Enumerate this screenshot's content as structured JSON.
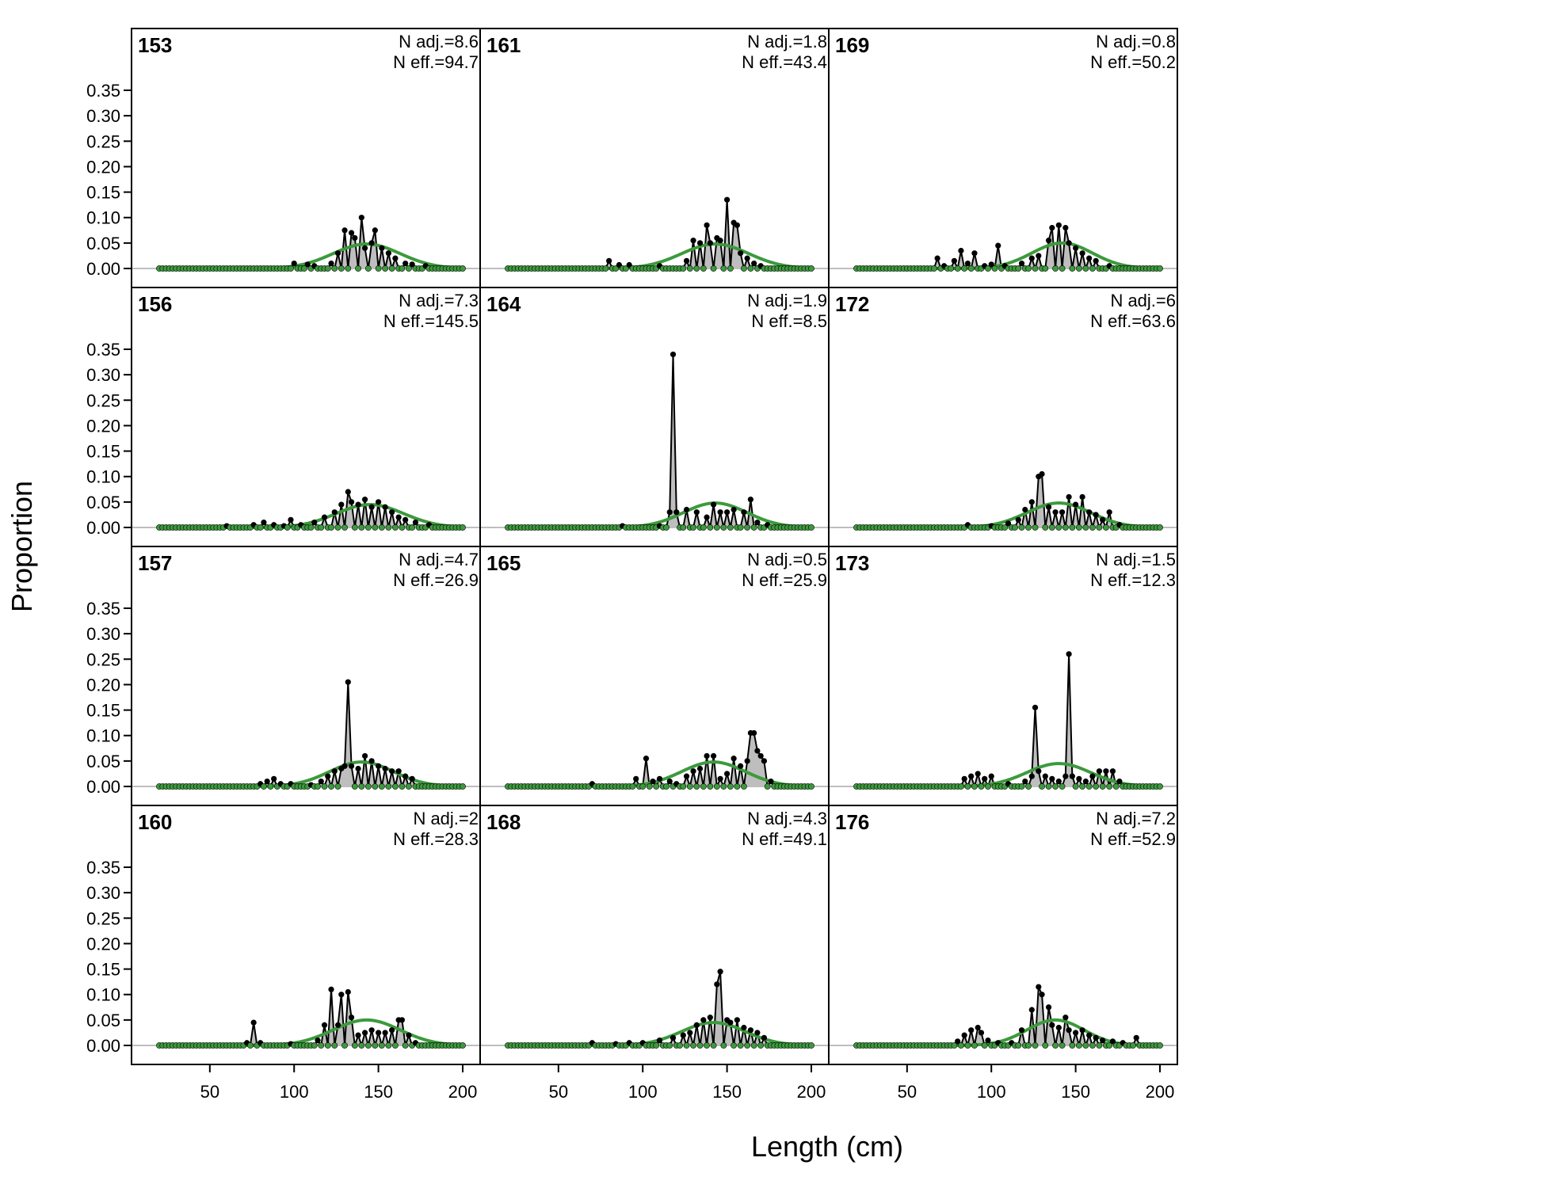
{
  "chart_data": {
    "type": "area",
    "title": "",
    "xlabel": "Length (cm)",
    "ylabel": "Proportion",
    "xlim": [
      20,
      200
    ],
    "ylim": [
      0,
      0.4
    ],
    "x_ticks": [
      "50",
      "100",
      "150",
      "200"
    ],
    "y_ticks": [
      "0.00",
      "0.05",
      "0.10",
      "0.15",
      "0.20",
      "0.25",
      "0.30",
      "0.35"
    ],
    "grid": false,
    "colors": {
      "observed_fill": "#bebebe",
      "observed_line": "#000000",
      "expected_line": "#3c9a3c",
      "zero_line": "#bebebe"
    },
    "series_styles": [
      "observed: grey filled area with black points",
      "expected: green line"
    ],
    "panels": [
      {
        "label": "153",
        "n_adj": "N adj.=8.6",
        "n_eff": "N eff.=94.7",
        "peaks": [
          [
            100,
            0.01
          ],
          [
            108,
            0.008
          ],
          [
            112,
            0.005
          ],
          [
            122,
            0.01
          ],
          [
            126,
            0.03
          ],
          [
            130,
            0.075
          ],
          [
            133,
            0.07
          ],
          [
            136,
            0.06
          ],
          [
            139,
            0.1
          ],
          [
            142,
            0.04
          ],
          [
            145,
            0.05
          ],
          [
            148,
            0.075
          ],
          [
            151,
            0.04
          ],
          [
            155,
            0.03
          ],
          [
            160,
            0.02
          ],
          [
            165,
            0.01
          ],
          [
            170,
            0.008
          ],
          [
            178,
            0.005
          ]
        ],
        "expected": {
          "mu": 143,
          "sigma": 20,
          "peak": 0.048
        }
      },
      {
        "label": "161",
        "n_adj": "N adj.=1.8",
        "n_eff": "N eff.=43.4",
        "peaks": [
          [
            80,
            0.015
          ],
          [
            86,
            0.007
          ],
          [
            92,
            0.007
          ],
          [
            110,
            0.005
          ],
          [
            125,
            0.015
          ],
          [
            130,
            0.055
          ],
          [
            134,
            0.05
          ],
          [
            137,
            0.085
          ],
          [
            140,
            0.05
          ],
          [
            143,
            0.06
          ],
          [
            146,
            0.055
          ],
          [
            150,
            0.135
          ],
          [
            153,
            0.09
          ],
          [
            155,
            0.085
          ],
          [
            158,
            0.03
          ],
          [
            162,
            0.02
          ],
          [
            166,
            0.01
          ],
          [
            170,
            0.005
          ]
        ],
        "expected": {
          "mu": 143,
          "sigma": 20,
          "peak": 0.048
        }
      },
      {
        "label": "169",
        "n_adj": "N adj.=0.8",
        "n_eff": "N eff.=50.2",
        "peaks": [
          [
            67,
            0.02
          ],
          [
            72,
            0.005
          ],
          [
            78,
            0.015
          ],
          [
            82,
            0.035
          ],
          [
            86,
            0.01
          ],
          [
            90,
            0.03
          ],
          [
            95,
            0.005
          ],
          [
            100,
            0.008
          ],
          [
            104,
            0.045
          ],
          [
            108,
            0.005
          ],
          [
            118,
            0.01
          ],
          [
            124,
            0.02
          ],
          [
            128,
            0.025
          ],
          [
            133,
            0.055
          ],
          [
            136,
            0.08
          ],
          [
            139,
            0.085
          ],
          [
            143,
            0.08
          ],
          [
            146,
            0.05
          ],
          [
            150,
            0.04
          ],
          [
            154,
            0.03
          ],
          [
            158,
            0.02
          ],
          [
            162,
            0.015
          ],
          [
            170,
            0.005
          ]
        ],
        "expected": {
          "mu": 142,
          "sigma": 18,
          "peak": 0.05
        }
      },
      {
        "label": "156",
        "n_adj": "N adj.=7.3",
        "n_eff": "N eff.=145.5",
        "peaks": [
          [
            60,
            0.003
          ],
          [
            76,
            0.005
          ],
          [
            82,
            0.01
          ],
          [
            88,
            0.005
          ],
          [
            94,
            0.003
          ],
          [
            98,
            0.015
          ],
          [
            104,
            0.005
          ],
          [
            112,
            0.01
          ],
          [
            118,
            0.02
          ],
          [
            124,
            0.03
          ],
          [
            128,
            0.045
          ],
          [
            131,
            0.07
          ],
          [
            134,
            0.05
          ],
          [
            138,
            0.045
          ],
          [
            142,
            0.055
          ],
          [
            146,
            0.04
          ],
          [
            150,
            0.05
          ],
          [
            154,
            0.04
          ],
          [
            158,
            0.03
          ],
          [
            162,
            0.02
          ],
          [
            166,
            0.015
          ],
          [
            172,
            0.01
          ],
          [
            180,
            0.005
          ]
        ],
        "expected": {
          "mu": 145,
          "sigma": 20,
          "peak": 0.045
        }
      },
      {
        "label": "164",
        "n_adj": "N adj.=1.9",
        "n_eff": "N eff.=8.5",
        "peaks": [
          [
            88,
            0.003
          ],
          [
            110,
            0.003
          ],
          [
            116,
            0.03
          ],
          [
            118,
            0.34
          ],
          [
            120,
            0.03
          ],
          [
            126,
            0.035
          ],
          [
            132,
            0.03
          ],
          [
            138,
            0.02
          ],
          [
            142,
            0.045
          ],
          [
            146,
            0.03
          ],
          [
            150,
            0.03
          ],
          [
            154,
            0.035
          ],
          [
            160,
            0.03
          ],
          [
            164,
            0.055
          ],
          [
            168,
            0.01
          ],
          [
            174,
            0.005
          ]
        ],
        "expected": {
          "mu": 143,
          "sigma": 19,
          "peak": 0.048
        }
      },
      {
        "label": "172",
        "n_adj": "N adj.=6",
        "n_eff": "N eff.=63.6",
        "peaks": [
          [
            85,
            0.005
          ],
          [
            100,
            0.003
          ],
          [
            110,
            0.008
          ],
          [
            116,
            0.015
          ],
          [
            120,
            0.035
          ],
          [
            124,
            0.05
          ],
          [
            127,
            0.1
          ],
          [
            130,
            0.105
          ],
          [
            134,
            0.04
          ],
          [
            138,
            0.03
          ],
          [
            142,
            0.03
          ],
          [
            146,
            0.06
          ],
          [
            150,
            0.045
          ],
          [
            154,
            0.06
          ],
          [
            158,
            0.03
          ],
          [
            162,
            0.025
          ],
          [
            166,
            0.015
          ],
          [
            170,
            0.03
          ],
          [
            176,
            0.005
          ]
        ],
        "expected": {
          "mu": 140,
          "sigma": 19,
          "peak": 0.048
        }
      },
      {
        "label": "157",
        "n_adj": "N adj.=4.7",
        "n_eff": "N eff.=26.9",
        "peaks": [
          [
            80,
            0.005
          ],
          [
            84,
            0.01
          ],
          [
            88,
            0.015
          ],
          [
            92,
            0.005
          ],
          [
            98,
            0.005
          ],
          [
            110,
            0.003
          ],
          [
            116,
            0.01
          ],
          [
            120,
            0.02
          ],
          [
            124,
            0.03
          ],
          [
            128,
            0.035
          ],
          [
            130,
            0.04
          ],
          [
            132,
            0.205
          ],
          [
            134,
            0.04
          ],
          [
            138,
            0.035
          ],
          [
            142,
            0.06
          ],
          [
            146,
            0.05
          ],
          [
            150,
            0.04
          ],
          [
            154,
            0.035
          ],
          [
            158,
            0.03
          ],
          [
            162,
            0.03
          ],
          [
            166,
            0.02
          ],
          [
            170,
            0.015
          ]
        ],
        "expected": {
          "mu": 140,
          "sigma": 19,
          "peak": 0.048
        }
      },
      {
        "label": "165",
        "n_adj": "N adj.=0.5",
        "n_eff": "N eff.=25.9",
        "peaks": [
          [
            70,
            0.005
          ],
          [
            96,
            0.015
          ],
          [
            102,
            0.055
          ],
          [
            106,
            0.01
          ],
          [
            110,
            0.015
          ],
          [
            116,
            0.01
          ],
          [
            120,
            0.005
          ],
          [
            126,
            0.02
          ],
          [
            130,
            0.03
          ],
          [
            134,
            0.035
          ],
          [
            138,
            0.06
          ],
          [
            142,
            0.06
          ],
          [
            146,
            0.015
          ],
          [
            150,
            0.025
          ],
          [
            154,
            0.055
          ],
          [
            158,
            0.04
          ],
          [
            162,
            0.05
          ],
          [
            164,
            0.105
          ],
          [
            166,
            0.105
          ],
          [
            168,
            0.07
          ],
          [
            170,
            0.06
          ],
          [
            172,
            0.05
          ],
          [
            176,
            0.01
          ]
        ],
        "expected": {
          "mu": 142,
          "sigma": 19,
          "peak": 0.048
        }
      },
      {
        "label": "173",
        "n_adj": "N adj.=1.5",
        "n_eff": "N eff.=12.3",
        "peaks": [
          [
            84,
            0.015
          ],
          [
            88,
            0.02
          ],
          [
            92,
            0.025
          ],
          [
            96,
            0.015
          ],
          [
            100,
            0.02
          ],
          [
            110,
            0.005
          ],
          [
            120,
            0.01
          ],
          [
            124,
            0.02
          ],
          [
            126,
            0.155
          ],
          [
            128,
            0.03
          ],
          [
            132,
            0.02
          ],
          [
            136,
            0.015
          ],
          [
            140,
            0.01
          ],
          [
            144,
            0.02
          ],
          [
            146,
            0.26
          ],
          [
            148,
            0.02
          ],
          [
            152,
            0.015
          ],
          [
            156,
            0.01
          ],
          [
            160,
            0.02
          ],
          [
            164,
            0.03
          ],
          [
            168,
            0.03
          ],
          [
            172,
            0.03
          ],
          [
            176,
            0.01
          ]
        ],
        "expected": {
          "mu": 140,
          "sigma": 19,
          "peak": 0.045
        }
      },
      {
        "label": "160",
        "n_adj": "N adj.=2",
        "n_eff": "N eff.=28.3",
        "peaks": [
          [
            72,
            0.005
          ],
          [
            76,
            0.045
          ],
          [
            80,
            0.005
          ],
          [
            98,
            0.003
          ],
          [
            114,
            0.01
          ],
          [
            118,
            0.04
          ],
          [
            122,
            0.11
          ],
          [
            125,
            0.04
          ],
          [
            128,
            0.1
          ],
          [
            131,
            0.105
          ],
          [
            134,
            0.055
          ],
          [
            138,
            0.02
          ],
          [
            142,
            0.025
          ],
          [
            146,
            0.03
          ],
          [
            150,
            0.025
          ],
          [
            154,
            0.025
          ],
          [
            158,
            0.03
          ],
          [
            161,
            0.05
          ],
          [
            164,
            0.05
          ],
          [
            168,
            0.02
          ],
          [
            172,
            0.005
          ]
        ],
        "expected": {
          "mu": 143,
          "sigma": 20,
          "peak": 0.05
        }
      },
      {
        "label": "168",
        "n_adj": "N adj.=4.3",
        "n_eff": "N eff.=49.1",
        "peaks": [
          [
            70,
            0.005
          ],
          [
            84,
            0.003
          ],
          [
            92,
            0.005
          ],
          [
            100,
            0.005
          ],
          [
            110,
            0.01
          ],
          [
            118,
            0.015
          ],
          [
            124,
            0.02
          ],
          [
            128,
            0.025
          ],
          [
            132,
            0.04
          ],
          [
            136,
            0.05
          ],
          [
            140,
            0.055
          ],
          [
            143,
            0.12
          ],
          [
            146,
            0.145
          ],
          [
            149,
            0.05
          ],
          [
            152,
            0.045
          ],
          [
            156,
            0.05
          ],
          [
            160,
            0.035
          ],
          [
            164,
            0.03
          ],
          [
            168,
            0.025
          ],
          [
            172,
            0.015
          ]
        ],
        "expected": {
          "mu": 142,
          "sigma": 19,
          "peak": 0.045
        }
      },
      {
        "label": "176",
        "n_adj": "N adj.=7.2",
        "n_eff": "N eff.=52.9",
        "peaks": [
          [
            80,
            0.008
          ],
          [
            84,
            0.02
          ],
          [
            88,
            0.03
          ],
          [
            91,
            0.035
          ],
          [
            94,
            0.025
          ],
          [
            98,
            0.01
          ],
          [
            104,
            0.005
          ],
          [
            112,
            0.005
          ],
          [
            118,
            0.03
          ],
          [
            124,
            0.07
          ],
          [
            127,
            0.115
          ],
          [
            130,
            0.1
          ],
          [
            133,
            0.075
          ],
          [
            136,
            0.04
          ],
          [
            140,
            0.035
          ],
          [
            143,
            0.055
          ],
          [
            146,
            0.03
          ],
          [
            150,
            0.025
          ],
          [
            154,
            0.03
          ],
          [
            158,
            0.02
          ],
          [
            162,
            0.015
          ],
          [
            166,
            0.01
          ],
          [
            172,
            0.008
          ],
          [
            178,
            0.005
          ],
          [
            186,
            0.015
          ]
        ],
        "expected": {
          "mu": 138,
          "sigma": 17,
          "peak": 0.05
        }
      }
    ]
  }
}
